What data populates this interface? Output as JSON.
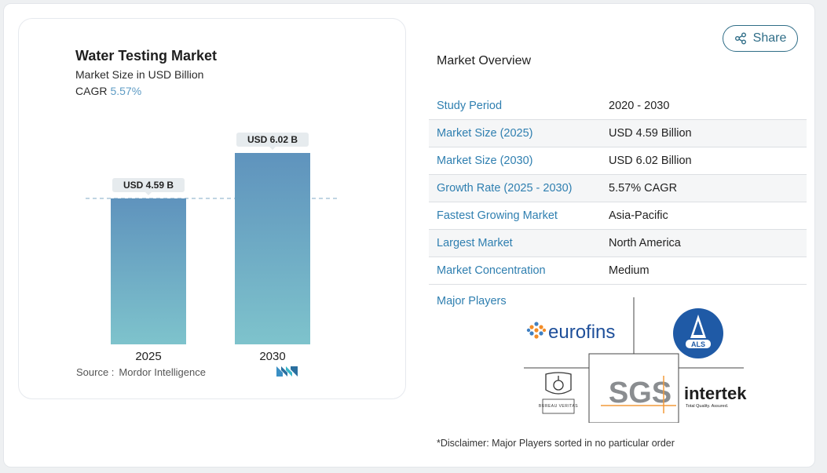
{
  "share": {
    "label": "Share",
    "icon": "share-icon"
  },
  "chart": {
    "title": "Water Testing Market",
    "subtitle": "Market Size in USD Billion",
    "cagr_label": "CAGR",
    "cagr_value": "5.57%",
    "source_label": "Source :",
    "source_value": "Mordor Intelligence",
    "colors": {
      "bar_top": "#5f93bd",
      "bar_bottom": "#7ec3cc",
      "label_bg": "#e6ebee",
      "accent": "#5d9bc4"
    }
  },
  "chart_data": {
    "type": "bar",
    "title": "Water Testing Market",
    "subtitle": "Market Size in USD Billion",
    "categories": [
      "2025",
      "2030"
    ],
    "values": [
      4.59,
      6.02
    ],
    "data_labels": [
      "USD 4.59 B",
      "USD 6.02 B"
    ],
    "ylim": [
      0,
      6.02
    ],
    "reference_line": 4.59,
    "grid": false
  },
  "overview": {
    "title": "Market Overview",
    "rows": [
      {
        "label": "Study Period",
        "value": "2020 - 2030"
      },
      {
        "label": "Market Size (2025)",
        "value": "USD 4.59 Billion"
      },
      {
        "label": "Market Size (2030)",
        "value": "USD 6.02 Billion"
      },
      {
        "label": "Growth Rate (2025 - 2030)",
        "value": "5.57% CAGR"
      },
      {
        "label": "Fastest Growing Market",
        "value": "Asia-Pacific"
      },
      {
        "label": "Largest Market",
        "value": "North America"
      },
      {
        "label": "Market Concentration",
        "value": "Medium"
      }
    ]
  },
  "major_players": {
    "label": "Major Players",
    "logos": [
      "eurofins",
      "ALS",
      "BUREAU VERITAS",
      "SGS",
      "intertek"
    ],
    "intertek_tagline": "Total Quality. Assured."
  },
  "disclaimer": "*Disclaimer: Major Players sorted in no particular order"
}
